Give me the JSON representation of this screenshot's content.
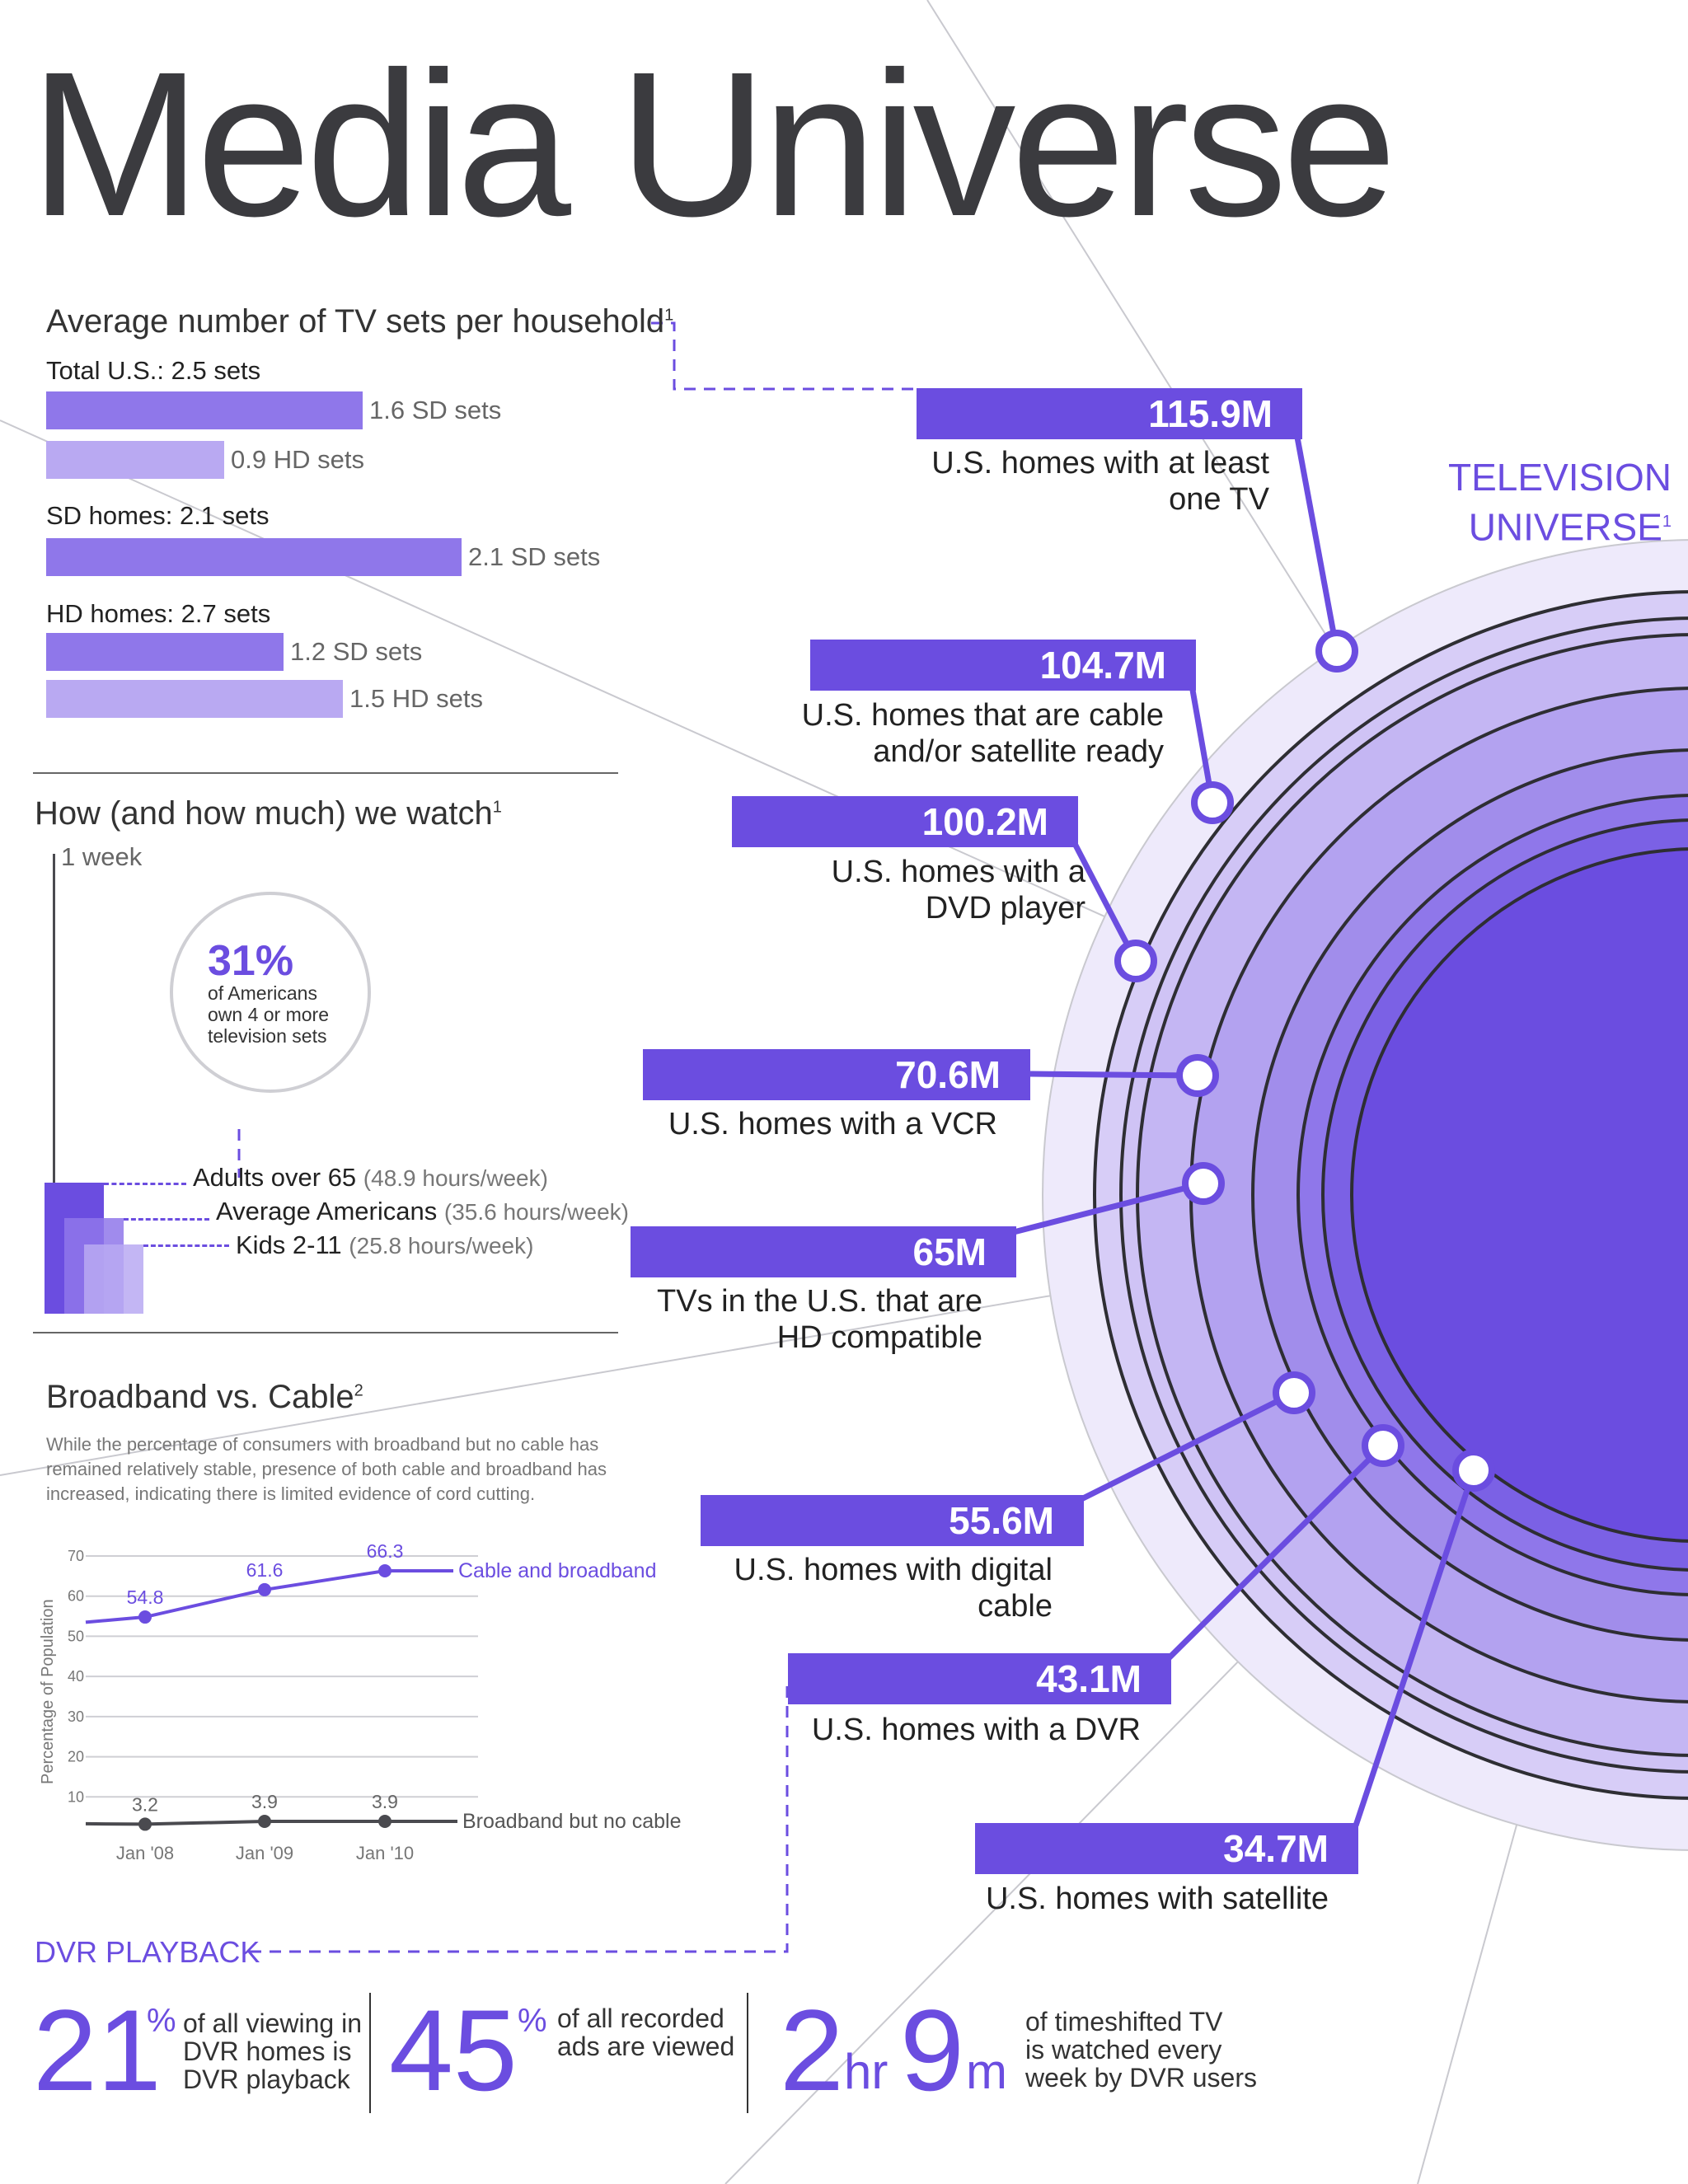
{
  "title": "Media Universe",
  "colors": {
    "accent": "#6b4de0",
    "bar_sd": "#8f77ea",
    "bar_hd": "#b9a9f2",
    "dark": "#4a4a4f",
    "ring_outer": "#ede8fb"
  },
  "tv_sets": {
    "title": "Average number of TV sets per household",
    "sup": "1",
    "groups": [
      {
        "label": "Total U.S.: 2.5 sets",
        "bars": [
          {
            "label": "1.6 SD sets",
            "value": 1.6,
            "kind": "SD"
          },
          {
            "label": "0.9 HD sets",
            "value": 0.9,
            "kind": "HD"
          }
        ]
      },
      {
        "label": "SD homes: 2.1 sets",
        "bars": [
          {
            "label": "2.1 SD sets",
            "value": 2.1,
            "kind": "SD"
          }
        ]
      },
      {
        "label": "HD homes: 2.7 sets",
        "bars": [
          {
            "label": "1.2 SD sets",
            "value": 1.2,
            "kind": "SD"
          },
          {
            "label": "1.5 HD sets",
            "value": 1.5,
            "kind": "HD"
          }
        ]
      }
    ]
  },
  "watch": {
    "title": "How (and how much) we watch",
    "sup": "1",
    "axis_label": "1 week",
    "circle_pct": "31%",
    "circle_text": [
      "of Americans",
      "own 4 or more",
      "television sets"
    ],
    "series": [
      {
        "label": "Adults over 65",
        "detail": "(48.9 hours/week)",
        "value": 48.9
      },
      {
        "label": "Average Americans",
        "detail": "(35.6 hours/week)",
        "value": 35.6
      },
      {
        "label": "Kids 2-11",
        "detail": "(25.8 hours/week)",
        "value": 25.8
      }
    ]
  },
  "broadband": {
    "title": "Broadband vs. Cable",
    "sup": "2",
    "note": "While the percentage of consumers with broadband but no cable has remained relatively stable, presence of both cable and broadband has increased, indicating there is limited evidence of cord cutting.",
    "ylabel": "Percentage of Population",
    "yticks": [
      "10",
      "20",
      "30",
      "40",
      "50",
      "60",
      "70"
    ],
    "xticks": [
      "Jan '08",
      "Jan '09",
      "Jan '10"
    ]
  },
  "chart_data": {
    "type": "line",
    "x": [
      "Jan '08",
      "Jan '09",
      "Jan '10"
    ],
    "ylabel": "Percentage of Population",
    "ylim": [
      0,
      70
    ],
    "series": [
      {
        "name": "Cable and broadband",
        "values": [
          54.8,
          61.6,
          66.3
        ],
        "labels": [
          "54.8",
          "61.6",
          "66.3"
        ]
      },
      {
        "name": "Broadband but no cable",
        "values": [
          3.2,
          3.9,
          3.9
        ],
        "labels": [
          "3.2",
          "3.9",
          "3.9"
        ]
      }
    ]
  },
  "tv_universe": {
    "title_line1": "TELEVISION",
    "title_line2": "UNIVERSE",
    "sup": "1",
    "items": [
      {
        "value": "115.9M",
        "desc": [
          "U.S. homes with at least",
          "one TV"
        ]
      },
      {
        "value": "104.7M",
        "desc": [
          "U.S. homes that are cable",
          "and/or satellite ready"
        ]
      },
      {
        "value": "100.2M",
        "desc": [
          "U.S. homes with a",
          "DVD player"
        ]
      },
      {
        "value": "70.6M",
        "desc": [
          "U.S. homes with a VCR"
        ]
      },
      {
        "value": "65M",
        "desc": [
          "TVs in the U.S. that are",
          "HD compatible"
        ]
      },
      {
        "value": "55.6M",
        "desc": [
          "U.S. homes with digital",
          "cable"
        ]
      },
      {
        "value": "43.1M",
        "desc": [
          "U.S. homes with a DVR"
        ]
      },
      {
        "value": "34.7M",
        "desc": [
          "U.S. homes with satellite"
        ]
      }
    ]
  },
  "dvr": {
    "title": "DVR PLAYBACK",
    "stats": [
      {
        "num": "21",
        "unit": "%",
        "text": [
          "of all viewing in",
          "DVR homes is",
          "DVR playback"
        ]
      },
      {
        "num": "45",
        "unit": "%",
        "text": [
          "of all recorded",
          "ads are viewed"
        ]
      },
      {
        "num1": "2",
        "unit1": "hr",
        "num2": "9",
        "unit2": "m",
        "text": [
          "of timeshifted TV",
          "is watched every",
          "week by DVR users"
        ]
      }
    ]
  }
}
